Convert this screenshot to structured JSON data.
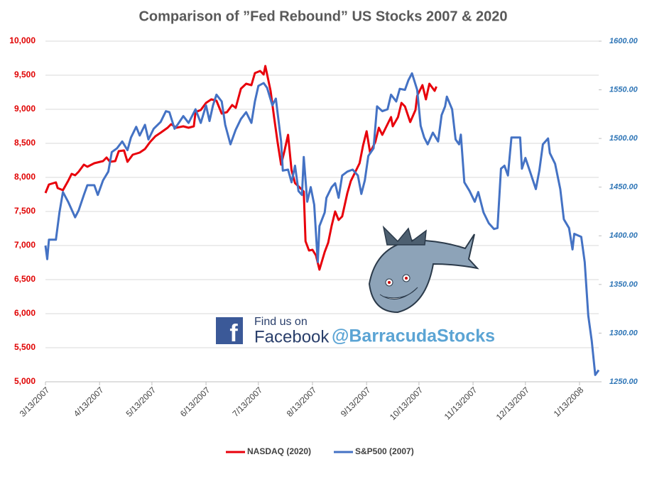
{
  "chart_data": {
    "type": "line",
    "title": "Comparison of ”Fed Rebound” US Stocks 2007 & 2020",
    "xlim": [
      "2007-03-13",
      "2008-01-24"
    ],
    "xticks": [
      {
        "value": "2007-03-13",
        "label": "3/13/2007"
      },
      {
        "value": "2007-04-13",
        "label": "4/13/2007"
      },
      {
        "value": "2007-05-13",
        "label": "5/13/2007"
      },
      {
        "value": "2007-06-13",
        "label": "6/13/2007"
      },
      {
        "value": "2007-07-13",
        "label": "7/13/2007"
      },
      {
        "value": "2007-08-13",
        "label": "8/13/2007"
      },
      {
        "value": "2007-09-13",
        "label": "9/13/2007"
      },
      {
        "value": "2007-10-13",
        "label": "10/13/2007"
      },
      {
        "value": "2007-11-13",
        "label": "11/13/2007"
      },
      {
        "value": "2007-12-13",
        "label": "12/13/2007"
      },
      {
        "value": "2008-01-13",
        "label": "1/13/2008"
      }
    ],
    "ylim": [
      5000,
      10000
    ],
    "yticks": [
      {
        "value": 5000,
        "label": "5,000"
      },
      {
        "value": 5500,
        "label": "5,500"
      },
      {
        "value": 6000,
        "label": "6,000"
      },
      {
        "value": 6500,
        "label": "6,500"
      },
      {
        "value": 7000,
        "label": "7,000"
      },
      {
        "value": 7500,
        "label": "7,500"
      },
      {
        "value": 8000,
        "label": "8,000"
      },
      {
        "value": 8500,
        "label": "8,500"
      },
      {
        "value": 9000,
        "label": "9,000"
      },
      {
        "value": 9500,
        "label": "9,500"
      },
      {
        "value": 10000,
        "label": "10,000"
      }
    ],
    "y2lim": [
      1250,
      1600
    ],
    "y2ticks": [
      {
        "value": 1250,
        "label": "1250.00"
      },
      {
        "value": 1300,
        "label": "1300.00"
      },
      {
        "value": 1350,
        "label": "1350.00"
      },
      {
        "value": 1400,
        "label": "1400.00"
      },
      {
        "value": 1450,
        "label": "1450.00"
      },
      {
        "value": 1500,
        "label": "1500.00"
      },
      {
        "value": 1550,
        "label": "1550.00"
      },
      {
        "value": 1600,
        "label": "1600.00"
      }
    ],
    "grid": true,
    "legend": "bottom",
    "series": [
      {
        "name": "NASDAQ (2020)",
        "color": "#e8000b",
        "axis": "y",
        "x": [
          "2007-03-13",
          "2007-03-15",
          "2007-03-19",
          "2007-03-20",
          "2007-03-23",
          "2007-03-26",
          "2007-03-28",
          "2007-03-30",
          "2007-04-01",
          "2007-04-04",
          "2007-04-06",
          "2007-04-10",
          "2007-04-15",
          "2007-04-17",
          "2007-04-19",
          "2007-04-22",
          "2007-04-24",
          "2007-04-27",
          "2007-04-29",
          "2007-05-02",
          "2007-05-06",
          "2007-05-09",
          "2007-05-12",
          "2007-05-15",
          "2007-05-18",
          "2007-05-22",
          "2007-05-24",
          "2007-05-27",
          "2007-05-31",
          "2007-06-03",
          "2007-06-06",
          "2007-06-07",
          "2007-06-10",
          "2007-06-13",
          "2007-06-16",
          "2007-06-19",
          "2007-06-22",
          "2007-06-25",
          "2007-06-28",
          "2007-06-30",
          "2007-07-03",
          "2007-07-06",
          "2007-07-09",
          "2007-07-11",
          "2007-07-14",
          "2007-07-16",
          "2007-07-17",
          "2007-07-20",
          "2007-07-22",
          "2007-07-24",
          "2007-07-26",
          "2007-07-28",
          "2007-07-30",
          "2007-08-01",
          "2007-08-03",
          "2007-08-06",
          "2007-08-08",
          "2007-08-09",
          "2007-08-11",
          "2007-08-13",
          "2007-08-15",
          "2007-08-17",
          "2007-08-20",
          "2007-08-22",
          "2007-08-24",
          "2007-08-26",
          "2007-08-28",
          "2007-08-30",
          "2007-09-02",
          "2007-09-04",
          "2007-09-07",
          "2007-09-09",
          "2007-09-11",
          "2007-09-13",
          "2007-09-15",
          "2007-09-18",
          "2007-09-20",
          "2007-09-22",
          "2007-09-24",
          "2007-09-27",
          "2007-09-28",
          "2007-10-01",
          "2007-10-03",
          "2007-10-05",
          "2007-10-08",
          "2007-10-11",
          "2007-10-12",
          "2007-10-15",
          "2007-10-16",
          "2007-10-17",
          "2007-10-19",
          "2007-10-22",
          "2007-10-23"
        ],
        "values": [
          7771,
          7896,
          7927,
          7844,
          7813,
          7948,
          8052,
          8031,
          8083,
          8188,
          8156,
          8208,
          8240,
          8292,
          8229,
          8240,
          8385,
          8396,
          8229,
          8333,
          8365,
          8417,
          8521,
          8604,
          8656,
          8729,
          8781,
          8729,
          8750,
          8729,
          8750,
          8958,
          8990,
          9094,
          9146,
          9125,
          8938,
          8958,
          9063,
          9021,
          9302,
          9375,
          9354,
          9531,
          9563,
          9510,
          9635,
          9271,
          8885,
          8521,
          8188,
          8396,
          8625,
          8104,
          7917,
          7844,
          7792,
          7063,
          6927,
          6938,
          6854,
          6646,
          6906,
          7042,
          7292,
          7500,
          7375,
          7427,
          7771,
          7948,
          8104,
          8208,
          8469,
          8677,
          8365,
          8521,
          8729,
          8625,
          8729,
          8885,
          8750,
          8885,
          9094,
          9042,
          8813,
          8990,
          9198,
          9354,
          9250,
          9146,
          9375,
          9271,
          9333
        ]
      },
      {
        "name": "S&P500 (2007)",
        "color": "#4472c4",
        "axis": "y2",
        "x": [
          "2007-03-13",
          "2007-03-14",
          "2007-03-15",
          "2007-03-19",
          "2007-03-21",
          "2007-03-23",
          "2007-03-26",
          "2007-03-30",
          "2007-04-01",
          "2007-04-04",
          "2007-04-06",
          "2007-04-10",
          "2007-04-12",
          "2007-04-15",
          "2007-04-18",
          "2007-04-20",
          "2007-04-23",
          "2007-04-26",
          "2007-04-29",
          "2007-05-01",
          "2007-05-04",
          "2007-05-06",
          "2007-05-09",
          "2007-05-11",
          "2007-05-14",
          "2007-05-18",
          "2007-05-21",
          "2007-05-23",
          "2007-05-26",
          "2007-05-28",
          "2007-05-31",
          "2007-06-03",
          "2007-06-07",
          "2007-06-10",
          "2007-06-13",
          "2007-06-15",
          "2007-06-17",
          "2007-06-19",
          "2007-06-22",
          "2007-06-24",
          "2007-06-27",
          "2007-06-30",
          "2007-07-03",
          "2007-07-06",
          "2007-07-09",
          "2007-07-11",
          "2007-07-13",
          "2007-07-16",
          "2007-07-18",
          "2007-07-21",
          "2007-07-23",
          "2007-07-26",
          "2007-07-27",
          "2007-07-30",
          "2007-08-01",
          "2007-08-03",
          "2007-08-05",
          "2007-08-07",
          "2007-08-08",
          "2007-08-10",
          "2007-08-12",
          "2007-08-14",
          "2007-08-16",
          "2007-08-17",
          "2007-08-20",
          "2007-08-21",
          "2007-08-24",
          "2007-08-26",
          "2007-08-28",
          "2007-08-30",
          "2007-09-02",
          "2007-09-05",
          "2007-09-08",
          "2007-09-10",
          "2007-09-12",
          "2007-09-14",
          "2007-09-17",
          "2007-09-19",
          "2007-09-22",
          "2007-09-25",
          "2007-09-27",
          "2007-09-30",
          "2007-10-02",
          "2007-10-05",
          "2007-10-07",
          "2007-10-09",
          "2007-10-12",
          "2007-10-14",
          "2007-10-16",
          "2007-10-18",
          "2007-10-21",
          "2007-10-24",
          "2007-10-26",
          "2007-10-28",
          "2007-10-29",
          "2007-11-01",
          "2007-11-03",
          "2007-11-05",
          "2007-11-06",
          "2007-11-08",
          "2007-11-11",
          "2007-11-14",
          "2007-11-16",
          "2007-11-19",
          "2007-11-22",
          "2007-11-25",
          "2007-11-27",
          "2007-11-29",
          "2007-12-01",
          "2007-12-03",
          "2007-12-05",
          "2007-12-10",
          "2007-12-11",
          "2007-12-13",
          "2007-12-16",
          "2007-12-19",
          "2007-12-21",
          "2007-12-23",
          "2007-12-26",
          "2007-12-27",
          "2007-12-30",
          "2008-01-02",
          "2008-01-04",
          "2008-01-07",
          "2008-01-09",
          "2008-01-10",
          "2008-01-14",
          "2008-01-16",
          "2008-01-18",
          "2008-01-20",
          "2008-01-22",
          "2008-01-24"
        ],
        "values": [
          1390,
          1376,
          1396,
          1396,
          1424,
          1445,
          1435,
          1419,
          1426,
          1442,
          1452,
          1452,
          1442,
          1457,
          1466,
          1486,
          1490,
          1497,
          1488,
          1501,
          1512,
          1503,
          1514,
          1499,
          1510,
          1517,
          1528,
          1527,
          1510,
          1515,
          1523,
          1516,
          1530,
          1516,
          1534,
          1518,
          1534,
          1545,
          1538,
          1514,
          1494,
          1509,
          1520,
          1527,
          1516,
          1538,
          1554,
          1557,
          1552,
          1534,
          1541,
          1497,
          1467,
          1468,
          1455,
          1472,
          1446,
          1442,
          1481,
          1435,
          1450,
          1432,
          1373,
          1410,
          1424,
          1439,
          1450,
          1454,
          1439,
          1462,
          1466,
          1468,
          1462,
          1443,
          1457,
          1482,
          1490,
          1533,
          1528,
          1530,
          1545,
          1538,
          1551,
          1550,
          1560,
          1567,
          1550,
          1513,
          1501,
          1494,
          1506,
          1497,
          1524,
          1533,
          1543,
          1530,
          1499,
          1494,
          1504,
          1455,
          1446,
          1435,
          1445,
          1424,
          1413,
          1407,
          1408,
          1469,
          1472,
          1462,
          1501,
          1501,
          1469,
          1480,
          1464,
          1448,
          1467,
          1494,
          1500,
          1485,
          1474,
          1448,
          1417,
          1408,
          1386,
          1402,
          1399,
          1373,
          1318,
          1292,
          1257,
          1262
        ]
      }
    ]
  },
  "watermark": {
    "line1": "Find us on",
    "line2": "Facebook",
    "handle": "@BarracudaStocks"
  }
}
